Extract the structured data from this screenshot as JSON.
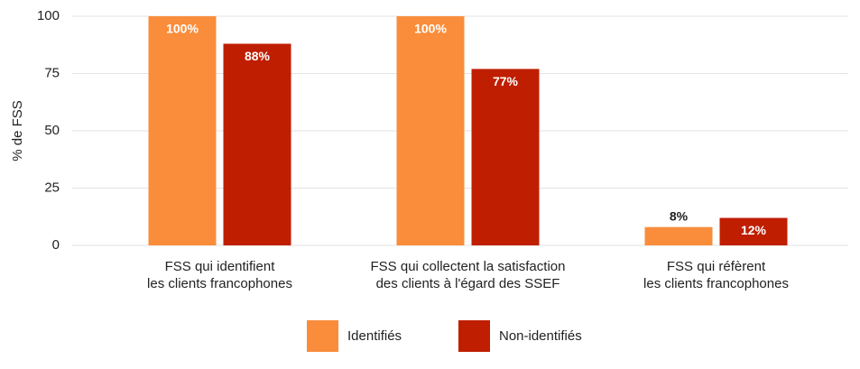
{
  "chart_data": {
    "type": "bar",
    "ylabel": "% de FSS",
    "categories": [
      "FSS qui identifient\nles clients francophones",
      "FSS qui collectent la satisfaction\ndes clients à l'égard des SSEF",
      "FSS qui réfèrent\nles clients francophones"
    ],
    "series": [
      {
        "name": "Identifiés",
        "color": "#f98d3b",
        "values": [
          100,
          100,
          8
        ],
        "value_labels": [
          "100%",
          "100%",
          "8%"
        ]
      },
      {
        "name": "Non-identifiés",
        "color": "#bf1e00",
        "values": [
          88,
          77,
          12
        ],
        "value_labels": [
          "88%",
          "77%",
          "12%"
        ]
      }
    ],
    "ylim": [
      0,
      100
    ],
    "yticks": [
      0,
      25,
      50,
      75,
      100
    ],
    "grid": true,
    "legend": "bottom"
  }
}
